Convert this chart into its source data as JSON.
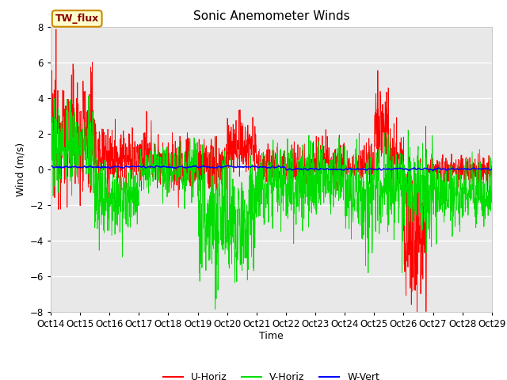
{
  "title": "Sonic Anemometer Winds",
  "xlabel": "Time",
  "ylabel": "Wind (m/s)",
  "ylim": [
    -8,
    8
  ],
  "yticks": [
    -8,
    -6,
    -4,
    -2,
    0,
    2,
    4,
    6,
    8
  ],
  "x_labels": [
    "Oct 14",
    "Oct 15",
    "Oct 16",
    "Oct 17",
    "Oct 18",
    "Oct 19",
    "Oct 20",
    "Oct 21",
    "Oct 22",
    "Oct 23",
    "Oct 24",
    "Oct 25",
    "Oct 26",
    "Oct 27",
    "Oct 28",
    "Oct 29"
  ],
  "u_color": "#ff0000",
  "v_color": "#00dd00",
  "w_color": "#0000ff",
  "bg_color": "#e8e8e8",
  "legend_label": "TW_flux",
  "legend_bg": "#ffffcc",
  "legend_border": "#cc8800",
  "series_labels": [
    "U-Horiz",
    "V-Horiz",
    "W-Vert"
  ],
  "title_fontsize": 11,
  "axis_fontsize": 9,
  "tick_fontsize": 8.5
}
